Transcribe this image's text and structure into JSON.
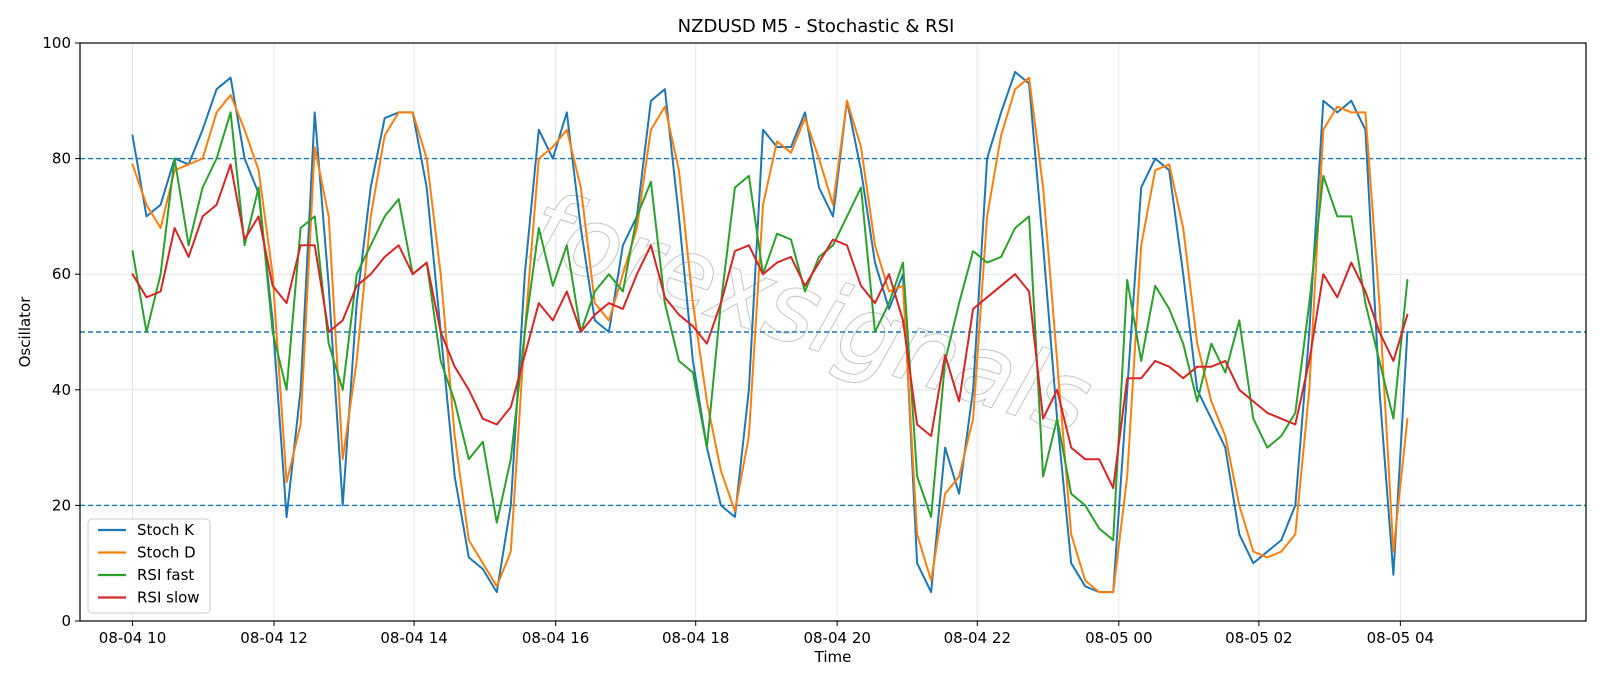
{
  "chart_data": {
    "type": "line",
    "title": "NZDUSD M5 - Stochastic & RSI",
    "xlabel": "Time",
    "ylabel": "Oscillator",
    "ylim": [
      0,
      100
    ],
    "xlim": [
      -0.0375,
      1.0375
    ],
    "yticks": [
      0,
      20,
      40,
      60,
      80,
      100
    ],
    "xticks": [
      {
        "label": "08-04 10",
        "t": 0.0
      },
      {
        "label": "08-04 12",
        "t": 0.101
      },
      {
        "label": "08-04 14",
        "t": 0.201
      },
      {
        "label": "08-04 16",
        "t": 0.302
      },
      {
        "label": "08-04 18",
        "t": 0.402
      },
      {
        "label": "08-04 20",
        "t": 0.503
      },
      {
        "label": "08-04 22",
        "t": 0.603
      },
      {
        "label": "08-05 00",
        "t": 0.704
      },
      {
        "label": "08-05 02",
        "t": 0.804
      },
      {
        "label": "08-05 04",
        "t": 0.905
      }
    ],
    "reference_lines": [
      80,
      50,
      20
    ],
    "grid": true,
    "legend_position": "lower-left",
    "watermark": "forexsignals",
    "colors": {
      "stoch_k": "#1f77b4",
      "stoch_d": "#ff7f0e",
      "rsi_fast": "#2ca02c",
      "rsi_slow": "#d62728",
      "reference": "#1f77b4"
    },
    "series": [
      {
        "name": "Stoch K",
        "color": "#1f77b4",
        "x": [
          0,
          0.01,
          0.02,
          0.03,
          0.04,
          0.05,
          0.06,
          0.07,
          0.08,
          0.09,
          0.1,
          0.11,
          0.12,
          0.13,
          0.14,
          0.15,
          0.16,
          0.17,
          0.18,
          0.19,
          0.2,
          0.21,
          0.22,
          0.23,
          0.24,
          0.25,
          0.26,
          0.27,
          0.28,
          0.29,
          0.3,
          0.31,
          0.32,
          0.33,
          0.34,
          0.35,
          0.36,
          0.37,
          0.38,
          0.39,
          0.4,
          0.41,
          0.42,
          0.43,
          0.44,
          0.45,
          0.46,
          0.47,
          0.48,
          0.49,
          0.5,
          0.51,
          0.52,
          0.53,
          0.54,
          0.55,
          0.56,
          0.57,
          0.58,
          0.59,
          0.6,
          0.61,
          0.62,
          0.63,
          0.64,
          0.65,
          0.66,
          0.67,
          0.68,
          0.69,
          0.7,
          0.71,
          0.72,
          0.73,
          0.74,
          0.75,
          0.76,
          0.77,
          0.78,
          0.79,
          0.8,
          0.81,
          0.82,
          0.83,
          0.84,
          0.85,
          0.86,
          0.87,
          0.88,
          0.89,
          0.9,
          0.91
        ],
        "y": [
          84,
          70,
          72,
          80,
          79,
          85,
          92,
          94,
          80,
          74,
          52,
          18,
          40,
          88,
          58,
          20,
          55,
          75,
          87,
          88,
          88,
          75,
          50,
          25,
          11,
          9,
          5,
          20,
          60,
          85,
          80,
          88,
          68,
          52,
          50,
          65,
          70,
          90,
          92,
          70,
          45,
          30,
          20,
          18,
          40,
          85,
          82,
          82,
          88,
          75,
          70,
          90,
          78,
          62,
          54,
          60,
          10,
          5,
          30,
          22,
          40,
          80,
          88,
          95,
          93,
          65,
          35,
          10,
          6,
          5,
          5,
          40,
          75,
          80,
          78,
          60,
          40,
          35,
          30,
          15,
          10,
          12,
          14,
          20,
          50,
          90,
          88,
          90,
          85,
          40,
          8,
          50
        ]
      },
      {
        "name": "Stoch D",
        "color": "#ff7f0e",
        "x": [
          0,
          0.01,
          0.02,
          0.03,
          0.04,
          0.05,
          0.06,
          0.07,
          0.08,
          0.09,
          0.1,
          0.11,
          0.12,
          0.13,
          0.14,
          0.15,
          0.16,
          0.17,
          0.18,
          0.19,
          0.2,
          0.21,
          0.22,
          0.23,
          0.24,
          0.25,
          0.26,
          0.27,
          0.28,
          0.29,
          0.3,
          0.31,
          0.32,
          0.33,
          0.34,
          0.35,
          0.36,
          0.37,
          0.38,
          0.39,
          0.4,
          0.41,
          0.42,
          0.43,
          0.44,
          0.45,
          0.46,
          0.47,
          0.48,
          0.49,
          0.5,
          0.51,
          0.52,
          0.53,
          0.54,
          0.55,
          0.56,
          0.57,
          0.58,
          0.59,
          0.6,
          0.61,
          0.62,
          0.63,
          0.64,
          0.65,
          0.66,
          0.67,
          0.68,
          0.69,
          0.7,
          0.71,
          0.72,
          0.73,
          0.74,
          0.75,
          0.76,
          0.77,
          0.78,
          0.79,
          0.8,
          0.81,
          0.82,
          0.83,
          0.84,
          0.85,
          0.86,
          0.87,
          0.88,
          0.89,
          0.9,
          0.91
        ],
        "y": [
          79,
          72,
          68,
          78,
          79,
          80,
          88,
          91,
          85,
          78,
          60,
          24,
          34,
          82,
          70,
          28,
          45,
          70,
          84,
          88,
          88,
          80,
          60,
          32,
          14,
          10,
          6,
          12,
          50,
          80,
          82,
          85,
          75,
          55,
          52,
          60,
          68,
          85,
          89,
          78,
          55,
          38,
          26,
          19,
          32,
          72,
          83,
          81,
          87,
          80,
          72,
          90,
          82,
          65,
          57,
          58,
          15,
          7,
          22,
          25,
          35,
          70,
          84,
          92,
          94,
          75,
          45,
          15,
          7,
          5,
          5,
          25,
          65,
          78,
          79,
          68,
          48,
          38,
          32,
          20,
          12,
          11,
          12,
          15,
          40,
          85,
          89,
          88,
          88,
          55,
          12,
          35
        ]
      },
      {
        "name": "RSI fast",
        "color": "#2ca02c",
        "x": [
          0,
          0.01,
          0.02,
          0.03,
          0.04,
          0.05,
          0.06,
          0.07,
          0.08,
          0.09,
          0.1,
          0.11,
          0.12,
          0.13,
          0.14,
          0.15,
          0.16,
          0.17,
          0.18,
          0.19,
          0.2,
          0.21,
          0.22,
          0.23,
          0.24,
          0.25,
          0.26,
          0.27,
          0.28,
          0.29,
          0.3,
          0.31,
          0.32,
          0.33,
          0.34,
          0.35,
          0.36,
          0.37,
          0.38,
          0.39,
          0.4,
          0.41,
          0.42,
          0.43,
          0.44,
          0.45,
          0.46,
          0.47,
          0.48,
          0.49,
          0.5,
          0.51,
          0.52,
          0.53,
          0.54,
          0.55,
          0.56,
          0.57,
          0.58,
          0.59,
          0.6,
          0.61,
          0.62,
          0.63,
          0.64,
          0.65,
          0.66,
          0.67,
          0.68,
          0.69,
          0.7,
          0.71,
          0.72,
          0.73,
          0.74,
          0.75,
          0.76,
          0.77,
          0.78,
          0.79,
          0.8,
          0.81,
          0.82,
          0.83,
          0.84,
          0.85,
          0.86,
          0.87,
          0.88,
          0.89,
          0.9,
          0.91
        ],
        "y": [
          64,
          50,
          60,
          80,
          65,
          75,
          80,
          88,
          65,
          75,
          50,
          40,
          68,
          70,
          48,
          40,
          60,
          65,
          70,
          73,
          60,
          62,
          45,
          38,
          28,
          31,
          17,
          28,
          50,
          68,
          58,
          65,
          50,
          57,
          60,
          57,
          70,
          76,
          55,
          45,
          43,
          30,
          55,
          75,
          77,
          60,
          67,
          66,
          57,
          63,
          65,
          70,
          75,
          50,
          55,
          62,
          25,
          18,
          45,
          55,
          64,
          62,
          63,
          68,
          70,
          25,
          35,
          22,
          20,
          16,
          14,
          59,
          45,
          58,
          54,
          48,
          38,
          48,
          43,
          52,
          35,
          30,
          32,
          36,
          55,
          77,
          70,
          70,
          55,
          45,
          35,
          59
        ]
      },
      {
        "name": "RSI slow",
        "color": "#d62728",
        "x": [
          0,
          0.01,
          0.02,
          0.03,
          0.04,
          0.05,
          0.06,
          0.07,
          0.08,
          0.09,
          0.1,
          0.11,
          0.12,
          0.13,
          0.14,
          0.15,
          0.16,
          0.17,
          0.18,
          0.19,
          0.2,
          0.21,
          0.22,
          0.23,
          0.24,
          0.25,
          0.26,
          0.27,
          0.28,
          0.29,
          0.3,
          0.31,
          0.32,
          0.33,
          0.34,
          0.35,
          0.36,
          0.37,
          0.38,
          0.39,
          0.4,
          0.41,
          0.42,
          0.43,
          0.44,
          0.45,
          0.46,
          0.47,
          0.48,
          0.49,
          0.5,
          0.51,
          0.52,
          0.53,
          0.54,
          0.55,
          0.56,
          0.57,
          0.58,
          0.59,
          0.6,
          0.61,
          0.62,
          0.63,
          0.64,
          0.65,
          0.66,
          0.67,
          0.68,
          0.69,
          0.7,
          0.71,
          0.72,
          0.73,
          0.74,
          0.75,
          0.76,
          0.77,
          0.78,
          0.79,
          0.8,
          0.81,
          0.82,
          0.83,
          0.84,
          0.85,
          0.86,
          0.87,
          0.88,
          0.89,
          0.9,
          0.91
        ],
        "y": [
          60,
          56,
          57,
          68,
          63,
          70,
          72,
          79,
          66,
          70,
          58,
          55,
          65,
          65,
          50,
          52,
          58,
          60,
          63,
          65,
          60,
          62,
          50,
          44,
          40,
          35,
          34,
          37,
          46,
          55,
          52,
          57,
          50,
          53,
          55,
          54,
          60,
          65,
          56,
          53,
          51,
          48,
          55,
          64,
          65,
          60,
          62,
          63,
          58,
          62,
          66,
          65,
          58,
          55,
          60,
          52,
          34,
          32,
          46,
          38,
          54,
          56,
          58,
          60,
          57,
          35,
          40,
          30,
          28,
          28,
          23,
          42,
          42,
          45,
          44,
          42,
          44,
          44,
          45,
          40,
          38,
          36,
          35,
          34,
          45,
          60,
          56,
          62,
          57,
          50,
          45,
          53
        ]
      }
    ]
  }
}
